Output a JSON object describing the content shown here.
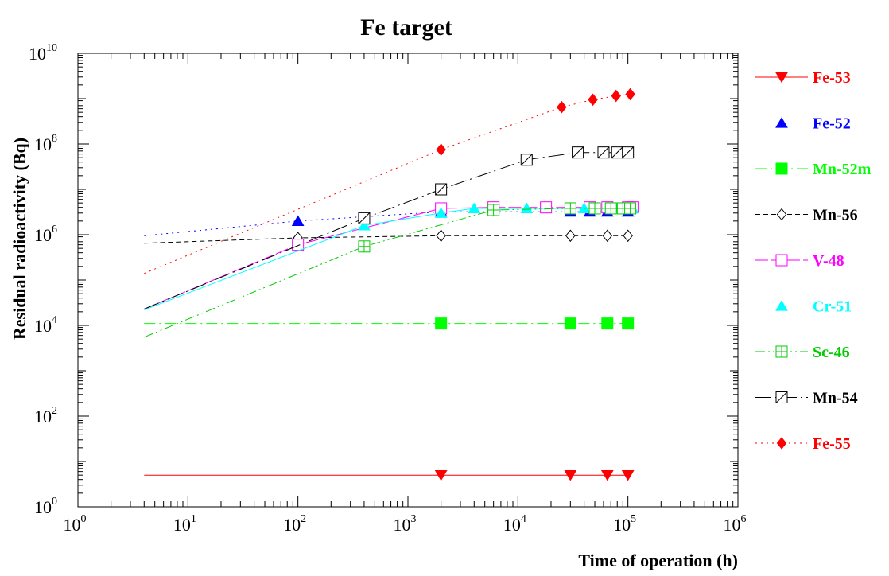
{
  "chart_data": {
    "type": "line",
    "title": "Fe target",
    "xlabel": "Time of operation (h)",
    "ylabel": "Residual radioactivity (Bq)",
    "x_scale": "log",
    "y_scale": "log",
    "xlim": [
      1,
      1000000
    ],
    "ylim": [
      1,
      10000000000
    ],
    "x_ticks": [
      {
        "base": "10",
        "exp": "0",
        "value": 1
      },
      {
        "base": "10",
        "exp": "1",
        "value": 10
      },
      {
        "base": "10",
        "exp": "2",
        "value": 100
      },
      {
        "base": "10",
        "exp": "3",
        "value": 1000
      },
      {
        "base": "10",
        "exp": "4",
        "value": 10000
      },
      {
        "base": "10",
        "exp": "5",
        "value": 100000
      },
      {
        "base": "10",
        "exp": "6",
        "value": 1000000
      }
    ],
    "y_ticks": [
      {
        "base": "10",
        "exp": "0",
        "value": 1
      },
      {
        "base": "10",
        "exp": "2",
        "value": 100
      },
      {
        "base": "10",
        "exp": "4",
        "value": 10000
      },
      {
        "base": "10",
        "exp": "6",
        "value": 1000000
      },
      {
        "base": "10",
        "exp": "8",
        "value": 100000000
      },
      {
        "base": "10",
        "exp": "10",
        "value": 10000000000
      }
    ],
    "grid": false,
    "legend_position": "right",
    "series": [
      {
        "name": "Fe-53",
        "color": "#ff0000",
        "marker": "triangle-down-filled",
        "dash": "solid",
        "x": [
          4,
          2000,
          30000,
          65000,
          100000
        ],
        "y": [
          5,
          5,
          5,
          5,
          5
        ]
      },
      {
        "name": "Fe-52",
        "color": "#0000ff",
        "marker": "triangle-up-filled",
        "dash": "dotted",
        "x": [
          4,
          100,
          2000,
          30000,
          45000,
          65000,
          100000
        ],
        "y": [
          950000,
          2000000,
          3200000,
          3200000,
          3200000,
          3200000,
          3200000
        ]
      },
      {
        "name": "Mn-52m",
        "color": "#00ff00",
        "marker": "square-filled",
        "dash": "dashdot",
        "x": [
          4,
          2000,
          30000,
          65000,
          100000
        ],
        "y": [
          11000,
          11000,
          11000,
          11000,
          11000
        ]
      },
      {
        "name": "Mn-56",
        "color": "#000000",
        "marker": "diamond-open",
        "dash": "dashed",
        "x": [
          4,
          100,
          2000,
          30000,
          65000,
          100000
        ],
        "y": [
          650000,
          850000,
          950000,
          950000,
          950000,
          950000
        ]
      },
      {
        "name": "V-48",
        "color": "#ff00ff",
        "marker": "square-open",
        "dash": "longdash",
        "x": [
          4,
          100,
          2000,
          6000,
          18000,
          45000,
          65000,
          100000,
          110000
        ],
        "y": [
          23000,
          600000,
          3800000,
          4000000,
          4000000,
          4000000,
          4000000,
          4000000,
          4000000
        ]
      },
      {
        "name": "Cr-51",
        "color": "#00ffff",
        "marker": "triangle-up-filled",
        "dash": "solid",
        "x": [
          4,
          400,
          2000,
          4000,
          12000,
          40000,
          80000,
          110000
        ],
        "y": [
          22000,
          1600000,
          3000000,
          3800000,
          3800000,
          3800000,
          3800000,
          3800000
        ]
      },
      {
        "name": "Sc-46",
        "color": "#00cc00",
        "marker": "square-plus-open",
        "dash": "dashdotdot",
        "x": [
          4,
          400,
          6000,
          30000,
          50000,
          70000,
          90000,
          105000
        ],
        "y": [
          5500,
          550000,
          3500000,
          3800000,
          3800000,
          3800000,
          3800000,
          3800000
        ]
      },
      {
        "name": "Mn-54",
        "color": "#000000",
        "marker": "square-x-open",
        "dash": "longdashdot",
        "x": [
          4,
          400,
          2000,
          12000,
          35000,
          60000,
          80000,
          100000
        ],
        "y": [
          23000,
          2300000,
          10000000,
          45000000,
          65000000,
          65000000,
          65000000,
          65000000
        ]
      },
      {
        "name": "Fe-55",
        "color": "#ff0000",
        "marker": "diamond-filled",
        "dash": "dotted",
        "x": [
          4,
          2000,
          25000,
          48000,
          78000,
          105000
        ],
        "y": [
          140000,
          75000000,
          650000000,
          950000000,
          1150000000,
          1250000000
        ]
      }
    ]
  }
}
